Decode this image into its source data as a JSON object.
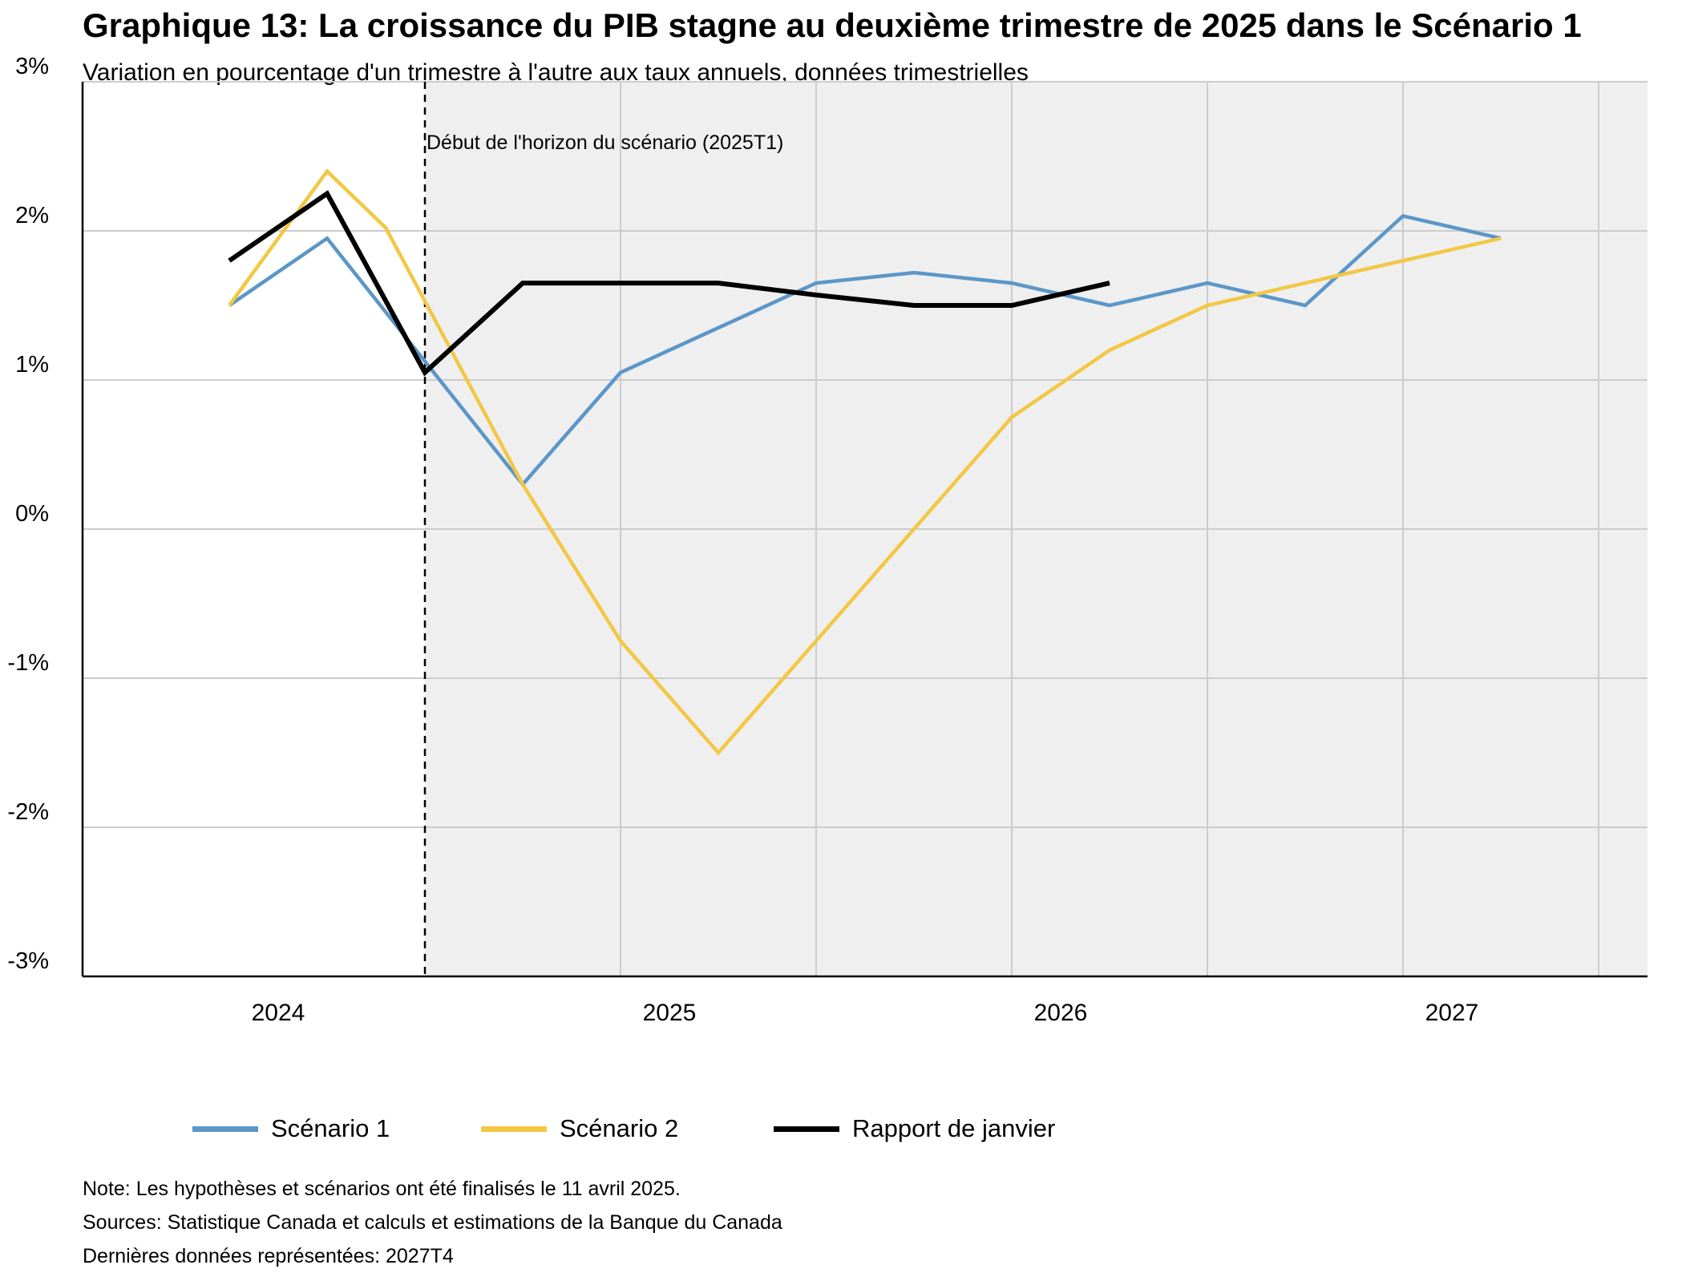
{
  "title": "Graphique 13: La croissance du PIB stagne au deuxième trimestre de 2025 dans le Scénario 1",
  "subtitle": "Variation en pourcentage d'un trimestre à l'autre aux taux annuels, données trimestrielles",
  "notes": {
    "note": "Note: Les hypothèses et scénarios ont été finalisés le 11 avril 2025.",
    "sources": "Sources: Statistique Canada et calculs et estimations de la Banque du Canada",
    "last_data": "Dernières données représentées: 2027T4"
  },
  "legend": {
    "items": [
      {
        "label": "Scénario 1",
        "color": "#5b96c8"
      },
      {
        "label": "Scénario 2",
        "color": "#f2c744"
      },
      {
        "label": "Rapport de janvier",
        "color": "#000000"
      }
    ]
  },
  "chart_data": {
    "type": "line",
    "ylim": [
      -3,
      3
    ],
    "yticks": [
      3,
      2,
      1,
      0,
      -1,
      -2,
      -3
    ],
    "ytick_labels": [
      "3%",
      "2%",
      "1%",
      "0%",
      "-1%",
      "-2%",
      "-3%"
    ],
    "x_year_labels": [
      "2024",
      "2025",
      "2026",
      "2027"
    ],
    "grid": true,
    "shaded_region_start_quarter": "2025T1",
    "shaded_color": "#efefef",
    "annotation": "Début de l'horizon du scénario (2025T1)",
    "quarters": [
      "2024T1",
      "2024T2",
      "2024T3",
      "2024T4",
      "2025T1",
      "2025T2",
      "2025T3",
      "2025T4",
      "2026T1",
      "2026T2",
      "2026T3",
      "2026T4",
      "2027T1",
      "2027T2",
      "2027T3",
      "2027T4"
    ],
    "series": [
      {
        "name": "Scénario 1",
        "color": "#5b96c8",
        "points": [
          [
            1,
            1.5
          ],
          [
            2,
            1.95
          ],
          [
            4,
            0.3
          ],
          [
            5,
            1.05
          ],
          [
            6,
            1.35
          ],
          [
            7,
            1.65
          ],
          [
            8,
            1.72
          ],
          [
            9,
            1.65
          ],
          [
            10,
            1.5
          ],
          [
            11,
            1.65
          ],
          [
            12,
            1.5
          ],
          [
            13,
            2.1
          ],
          [
            14,
            1.95
          ]
        ]
      },
      {
        "name": "Scénario 2",
        "color": "#f2c744",
        "points": [
          [
            1,
            1.5
          ],
          [
            2,
            2.4
          ],
          [
            2.6,
            2.02
          ],
          [
            4,
            0.3
          ],
          [
            5,
            -0.75
          ],
          [
            6,
            -1.5
          ],
          [
            7,
            -0.75
          ],
          [
            8,
            0.0
          ],
          [
            9,
            0.75
          ],
          [
            10,
            1.2
          ],
          [
            11,
            1.5
          ],
          [
            12,
            1.65
          ],
          [
            13,
            1.8
          ],
          [
            14,
            1.95
          ]
        ]
      },
      {
        "name": "Rapport de janvier",
        "color": "#000000",
        "points": [
          [
            1,
            1.8
          ],
          [
            2,
            2.25
          ],
          [
            3,
            1.05
          ],
          [
            4,
            1.65
          ],
          [
            5,
            1.65
          ],
          [
            6,
            1.65
          ],
          [
            7,
            1.57
          ],
          [
            8,
            1.5
          ],
          [
            9,
            1.5
          ],
          [
            10,
            1.65
          ]
        ]
      }
    ]
  }
}
